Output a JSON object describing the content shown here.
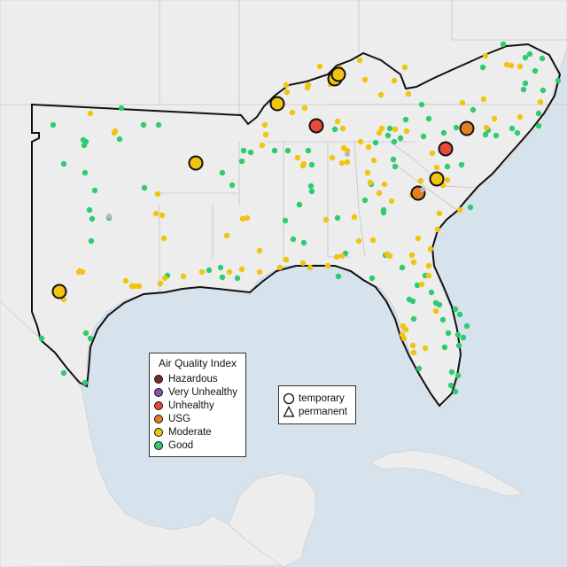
{
  "legend": {
    "title": "Air Quality Index",
    "categories": [
      {
        "label": "Hazardous",
        "color": "#7e2a2a"
      },
      {
        "label": "Very Unhealthy",
        "color": "#8f50b0"
      },
      {
        "label": "Unhealthy",
        "color": "#e8493a"
      },
      {
        "label": "USG",
        "color": "#e67e22"
      },
      {
        "label": "Moderate",
        "color": "#f1c40f"
      },
      {
        "label": "Good",
        "color": "#2ecc71"
      }
    ]
  },
  "monitor_types": {
    "temporary": "temporary",
    "permanent": "permanent"
  },
  "colors": {
    "water": "#d6e2ec",
    "land": "#efefef",
    "boundary": "#111111"
  },
  "monitor_counts": {
    "unhealthy": 2,
    "usg": 2,
    "moderate_large": 7
  }
}
